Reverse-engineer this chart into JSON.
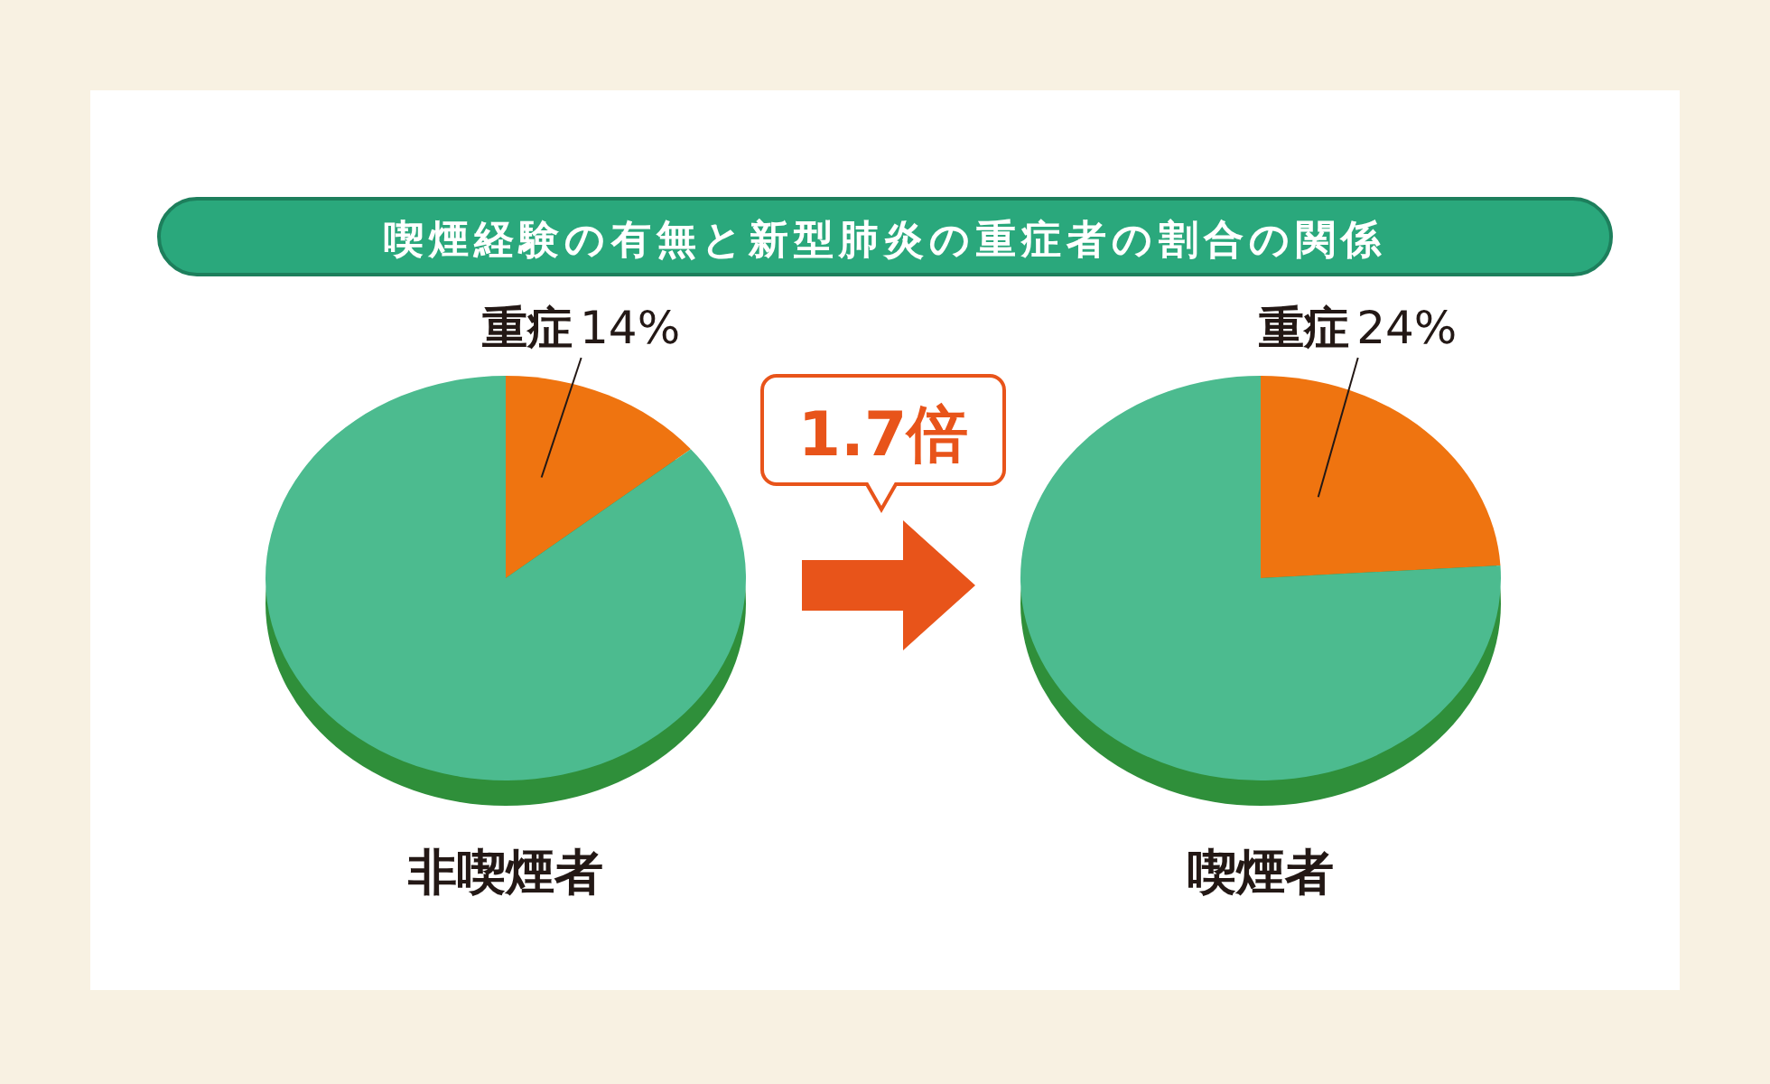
{
  "chart_data": [
    {
      "type": "pie",
      "title": "喫煙経験の有無と新型肺炎の重症者の割合の関係",
      "xlabel": "非喫煙者",
      "categories": [
        "重症",
        null
      ],
      "values": [
        14,
        86
      ],
      "colors": [
        "#ef7410",
        "#4cbb8f"
      ],
      "value_labels": [
        "14%",
        null
      ]
    },
    {
      "type": "pie",
      "xlabel": "喫煙者",
      "categories": [
        "重症",
        null
      ],
      "values": [
        24,
        76
      ],
      "colors": [
        "#ef7410",
        "#4cbb8f"
      ],
      "value_labels": [
        "24%",
        null
      ],
      "annotations": [
        "1.7倍"
      ]
    }
  ]
}
